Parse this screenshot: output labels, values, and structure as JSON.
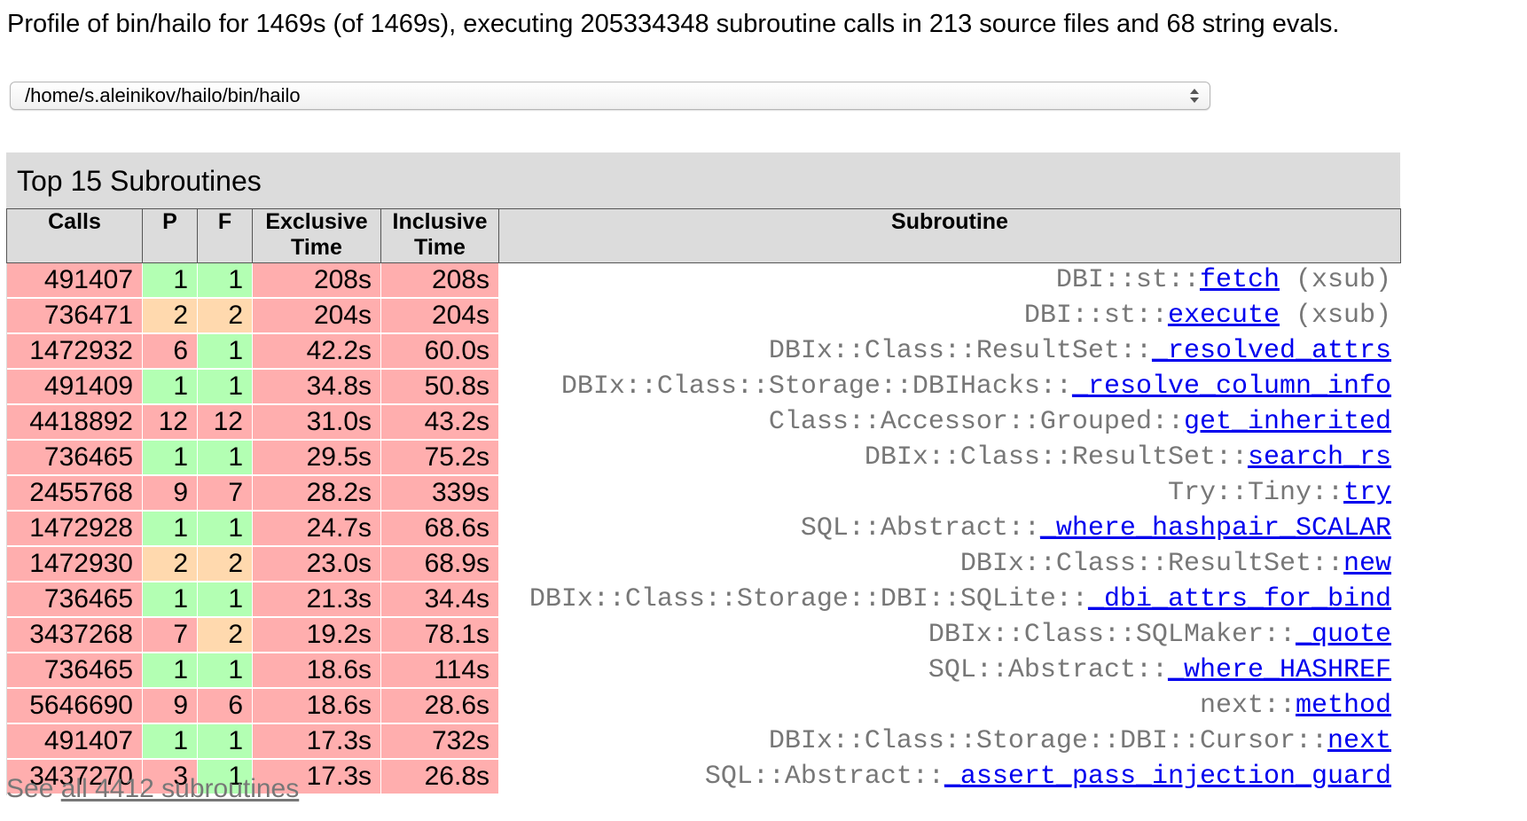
{
  "header": {
    "summary": "Profile of bin/hailo for 1469s (of 1469s), executing 205334348 subroutine calls in 213 source files and 68 string evals."
  },
  "file_select": {
    "value": "/home/s.aleinikov/hailo/bin/hailo"
  },
  "top_subs": {
    "caption": "Top 15 Subroutines",
    "columns": {
      "calls": "Calls",
      "p": "P",
      "f": "F",
      "exclusive_line1": "Exclusive",
      "exclusive_line2": "Time",
      "inclusive_line1": "Inclusive",
      "inclusive_line2": "Time",
      "subroutine": "Subroutine"
    },
    "colors": {
      "hot": "#ffaeae",
      "warm": "#ffd9ae",
      "cool": "#b3ffb3",
      "link": "#0000ee",
      "package_text": "#777777"
    },
    "rows": [
      {
        "calls": "491407",
        "p": "1",
        "f": "1",
        "p_level": "cool",
        "f_level": "cool",
        "excl": "208s",
        "incl": "208s",
        "pkg": "DBI::st::",
        "name": "fetch",
        "suffix": " (xsub)"
      },
      {
        "calls": "736471",
        "p": "2",
        "f": "2",
        "p_level": "warm",
        "f_level": "warm",
        "excl": "204s",
        "incl": "204s",
        "pkg": "DBI::st::",
        "name": "execute",
        "suffix": " (xsub)"
      },
      {
        "calls": "1472932",
        "p": "6",
        "f": "1",
        "p_level": "hot",
        "f_level": "cool",
        "excl": "42.2s",
        "incl": "60.0s",
        "pkg": "DBIx::Class::ResultSet::",
        "name": "_resolved_attrs",
        "suffix": ""
      },
      {
        "calls": "491409",
        "p": "1",
        "f": "1",
        "p_level": "cool",
        "f_level": "cool",
        "excl": "34.8s",
        "incl": "50.8s",
        "pkg": "DBIx::Class::Storage::DBIHacks::",
        "name": "_resolve_column_info",
        "suffix": ""
      },
      {
        "calls": "4418892",
        "p": "12",
        "f": "12",
        "p_level": "hot",
        "f_level": "hot",
        "excl": "31.0s",
        "incl": "43.2s",
        "pkg": "Class::Accessor::Grouped::",
        "name": "get_inherited",
        "suffix": ""
      },
      {
        "calls": "736465",
        "p": "1",
        "f": "1",
        "p_level": "cool",
        "f_level": "cool",
        "excl": "29.5s",
        "incl": "75.2s",
        "pkg": "DBIx::Class::ResultSet::",
        "name": "search_rs",
        "suffix": ""
      },
      {
        "calls": "2455768",
        "p": "9",
        "f": "7",
        "p_level": "hot",
        "f_level": "hot",
        "excl": "28.2s",
        "incl": "339s",
        "pkg": "Try::Tiny::",
        "name": "try",
        "suffix": ""
      },
      {
        "calls": "1472928",
        "p": "1",
        "f": "1",
        "p_level": "cool",
        "f_level": "cool",
        "excl": "24.7s",
        "incl": "68.6s",
        "pkg": "SQL::Abstract::",
        "name": "_where_hashpair_SCALAR",
        "suffix": ""
      },
      {
        "calls": "1472930",
        "p": "2",
        "f": "2",
        "p_level": "warm",
        "f_level": "warm",
        "excl": "23.0s",
        "incl": "68.9s",
        "pkg": "DBIx::Class::ResultSet::",
        "name": "new",
        "suffix": ""
      },
      {
        "calls": "736465",
        "p": "1",
        "f": "1",
        "p_level": "cool",
        "f_level": "cool",
        "excl": "21.3s",
        "incl": "34.4s",
        "pkg": "DBIx::Class::Storage::DBI::SQLite::",
        "name": "_dbi_attrs_for_bind",
        "suffix": ""
      },
      {
        "calls": "3437268",
        "p": "7",
        "f": "2",
        "p_level": "hot",
        "f_level": "warm",
        "excl": "19.2s",
        "incl": "78.1s",
        "pkg": "DBIx::Class::SQLMaker::",
        "name": "_quote",
        "suffix": ""
      },
      {
        "calls": "736465",
        "p": "1",
        "f": "1",
        "p_level": "cool",
        "f_level": "cool",
        "excl": "18.6s",
        "incl": "114s",
        "pkg": "SQL::Abstract::",
        "name": "_where_HASHREF",
        "suffix": ""
      },
      {
        "calls": "5646690",
        "p": "9",
        "f": "6",
        "p_level": "hot",
        "f_level": "hot",
        "excl": "18.6s",
        "incl": "28.6s",
        "pkg": "next::",
        "name": "method",
        "suffix": ""
      },
      {
        "calls": "491407",
        "p": "1",
        "f": "1",
        "p_level": "cool",
        "f_level": "cool",
        "excl": "17.3s",
        "incl": "732s",
        "pkg": "DBIx::Class::Storage::DBI::Cursor::",
        "name": "next",
        "suffix": ""
      },
      {
        "calls": "3437270",
        "p": "3",
        "f": "1",
        "p_level": "hot",
        "f_level": "cool",
        "excl": "17.3s",
        "incl": "26.8s",
        "pkg": "SQL::Abstract::",
        "name": "_assert_pass_injection_guard",
        "suffix": ""
      }
    ]
  },
  "footer": {
    "prefix": "See ",
    "link": "all 4412 subroutines"
  }
}
